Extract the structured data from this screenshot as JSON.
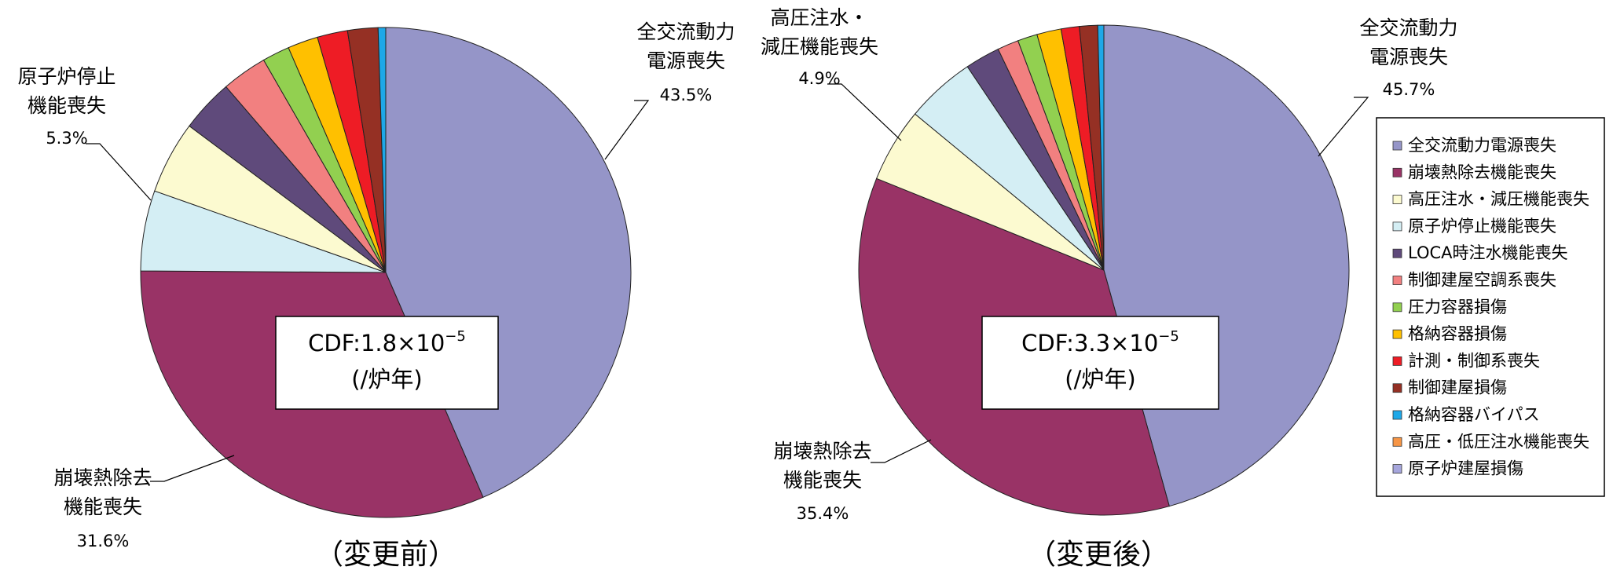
{
  "chart_data": [
    {
      "type": "pie",
      "title": "（変更前）",
      "box_lines": [
        "CDF:1.8×10",
        "−5",
        "(/炉年)"
      ],
      "categories": [
        "全交流動力電源喪失",
        "崩壊熱除去機能喪失",
        "原子炉停止機能喪失",
        "高圧注水・減圧機能喪失",
        "LOCA時注水機能喪失",
        "制御建屋空調系喪失",
        "圧力容器損傷",
        "格納容器損傷",
        "計測・制御系喪失",
        "制御建屋損傷",
        "格納容器バイパス"
      ],
      "values": [
        43.5,
        31.6,
        5.3,
        4.8,
        3.5,
        3.0,
        1.8,
        2.0,
        2.0,
        2.0,
        0.5
      ],
      "value_labels": [
        "43.5%",
        "31.6%",
        "5.3%",
        null,
        null,
        null,
        null,
        null,
        null,
        null,
        null
      ],
      "labels": [
        [
          "全交流動力",
          "電源喪失"
        ],
        [
          "崩壊熱除去",
          "機能喪失"
        ],
        [
          "原子炉停止",
          "機能喪失"
        ],
        null,
        null,
        null,
        null,
        null,
        null,
        null,
        null
      ]
    },
    {
      "type": "pie",
      "title": "（変更後）",
      "box_lines": [
        "CDF:3.3×10",
        "−5",
        "(/炉年)"
      ],
      "categories": [
        "全交流動力電源喪失",
        "崩壊熱除去機能喪失",
        "高圧注水・減圧機能喪失",
        "原子炉停止機能喪失",
        "LOCA時注水機能喪失",
        "制御建屋空調系喪失",
        "圧力容器損傷",
        "格納容器損傷",
        "計測・制御系喪失",
        "制御建屋損傷",
        "格納容器バイパス"
      ],
      "values": [
        45.7,
        35.4,
        4.9,
        4.6,
        2.3,
        1.4,
        1.3,
        1.6,
        1.2,
        1.2,
        0.4
      ],
      "value_labels": [
        "45.7%",
        "35.4%",
        "4.9%",
        null,
        null,
        null,
        null,
        null,
        null,
        null,
        null
      ],
      "labels": [
        [
          "全交流動力",
          "電源喪失"
        ],
        [
          "崩壊熱除去",
          "機能喪失"
        ],
        [
          "高圧注水・",
          "減圧機能喪失"
        ],
        null,
        null,
        null,
        null,
        null,
        null,
        null,
        null
      ]
    }
  ],
  "legend": [
    {
      "name": "全交流動力電源喪失",
      "color": "#9595c8"
    },
    {
      "name": "崩壊熱除去機能喪失",
      "color": "#993366"
    },
    {
      "name": "高圧注水・減圧機能喪失",
      "color": "#fcfad0"
    },
    {
      "name": "原子炉停止機能喪失",
      "color": "#d4eef4"
    },
    {
      "name": "LOCA時注水機能喪失",
      "color": "#5f4a7b"
    },
    {
      "name": "制御建屋空調系喪失",
      "color": "#f28080"
    },
    {
      "name": "圧力容器損傷",
      "color": "#92d050"
    },
    {
      "name": "格納容器損傷",
      "color": "#ffc000"
    },
    {
      "name": "計測・制御系喪失",
      "color": "#ee1c25"
    },
    {
      "name": "制御建屋損傷",
      "color": "#953024"
    },
    {
      "name": "格納容器バイパス",
      "color": "#1ea8e8"
    },
    {
      "name": "高圧・低圧注水機能喪失",
      "color": "#f79646"
    },
    {
      "name": "原子炉建屋損傷",
      "color": "#a6a6dc"
    }
  ]
}
